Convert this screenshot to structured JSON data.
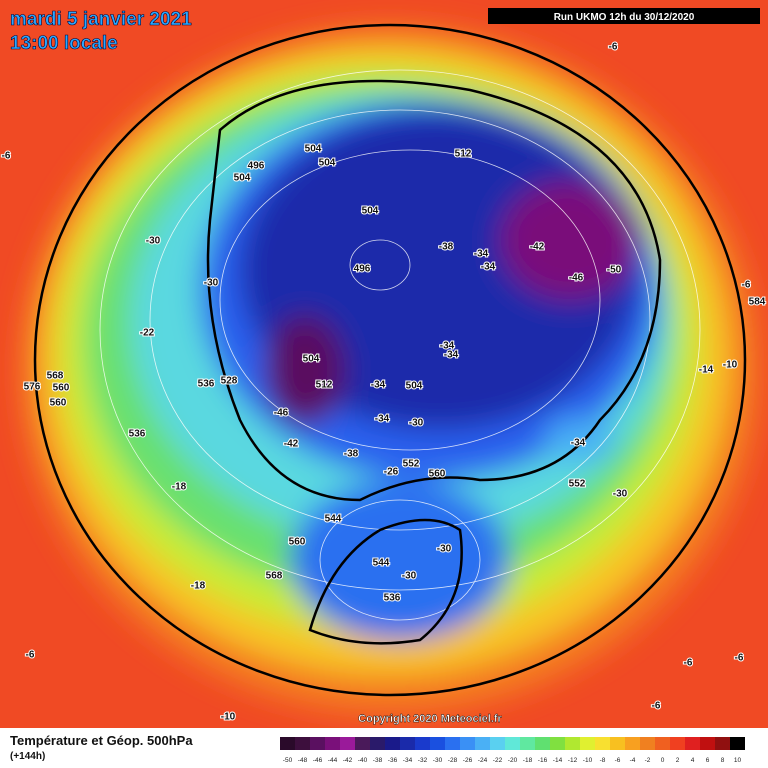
{
  "header": {
    "title": "mardi 5 janvier 2021",
    "time": "13:00 locale",
    "run": "Run UKMO 12h du 30/12/2020"
  },
  "footer": {
    "title": "Température et Géop. 500hPa",
    "lead": "(+144h)",
    "copyright": "Copyright 2020 Meteociel.fr"
  },
  "map_labels": [
    -6,
    -6,
    -6,
    584,
    -10,
    -14,
    -30,
    496,
    504,
    504,
    504,
    512,
    504,
    496,
    -38,
    -34,
    -34,
    -42,
    -46,
    -50,
    -30,
    -22,
    504,
    512,
    536,
    528,
    -46,
    -42,
    -34,
    504,
    -34,
    -30,
    -38,
    -34,
    -34,
    568,
    576,
    560,
    560,
    536,
    -34,
    552,
    -26,
    560,
    552,
    -30,
    -18,
    544,
    560,
    544,
    -30,
    -30,
    536,
    568,
    -18,
    -6,
    -6,
    -6,
    -10,
    -6
  ],
  "legend": {
    "values": [
      -50,
      -48,
      -46,
      -44,
      -42,
      -40,
      -38,
      -36,
      -34,
      -32,
      -30,
      -28,
      -26,
      -24,
      -22,
      -20,
      -18,
      -16,
      -14,
      -12,
      -10,
      -8,
      -6,
      -4,
      -2,
      0,
      2,
      4,
      6,
      8,
      10
    ],
    "colors": [
      "#2a0a2a",
      "#3d0f3d",
      "#5a1060",
      "#7a107a",
      "#9a1a9a",
      "#4a1a5a",
      "#2a1a6a",
      "#1a1a8a",
      "#1a2aaa",
      "#1a3acc",
      "#1a50e0",
      "#2a70f0",
      "#3a90f5",
      "#4ab0f5",
      "#5ad0f0",
      "#60e8d8",
      "#60e8a0",
      "#60e070",
      "#80e040",
      "#b0e830",
      "#e0f030",
      "#f8e030",
      "#f8c020",
      "#f8a020",
      "#f08020",
      "#f06020",
      "#f04020",
      "#e02020",
      "#c01010",
      "#901010",
      "#000000"
    ]
  }
}
